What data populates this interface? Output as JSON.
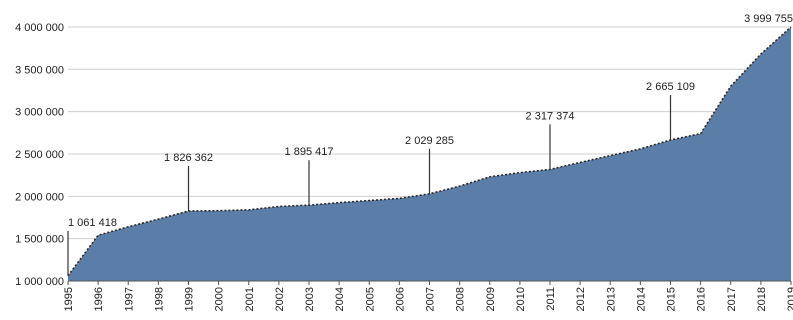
{
  "chart_data": {
    "type": "area",
    "title": "",
    "xlabel": "",
    "ylabel": "",
    "ylim": [
      1000000,
      4200000
    ],
    "yticks": [
      1000000,
      1500000,
      2000000,
      2500000,
      3000000,
      3500000,
      4000000
    ],
    "ytick_labels": [
      "1 000 000",
      "1 500 000",
      "2 000 000",
      "2 500 000",
      "3 000 000",
      "3 500 000",
      "4 000 000"
    ],
    "grid": true,
    "fill_color": "#5b7ea8",
    "line_color": "#2a2a2a",
    "x": [
      "1995",
      "1996",
      "1997",
      "1998",
      "1999",
      "2000",
      "2001",
      "2002",
      "2003",
      "2004",
      "2005",
      "2006",
      "2007",
      "2008",
      "2009",
      "2010",
      "2011",
      "2012",
      "2013",
      "2014",
      "2015",
      "2016",
      "2017",
      "2018",
      "2019"
    ],
    "values": [
      1061418,
      1540000,
      1640000,
      1730000,
      1826362,
      1830000,
      1840000,
      1880000,
      1895417,
      1925000,
      1950000,
      1975000,
      2029285,
      2120000,
      2230000,
      2280000,
      2317374,
      2400000,
      2480000,
      2560000,
      2665109,
      2740000,
      3300000,
      3680000,
      3999755
    ],
    "annotations": [
      {
        "x": "1995",
        "value": 1061418,
        "label": "1 061 418"
      },
      {
        "x": "1999",
        "value": 1826362,
        "label": "1 826 362"
      },
      {
        "x": "2003",
        "value": 1895417,
        "label": "1 895 417"
      },
      {
        "x": "2007",
        "value": 2029285,
        "label": "2 029 285"
      },
      {
        "x": "2011",
        "value": 2317374,
        "label": "2 317 374"
      },
      {
        "x": "2015",
        "value": 2665109,
        "label": "2 665 109"
      },
      {
        "x": "2019",
        "value": 3999755,
        "label": "3 999 755"
      }
    ]
  }
}
